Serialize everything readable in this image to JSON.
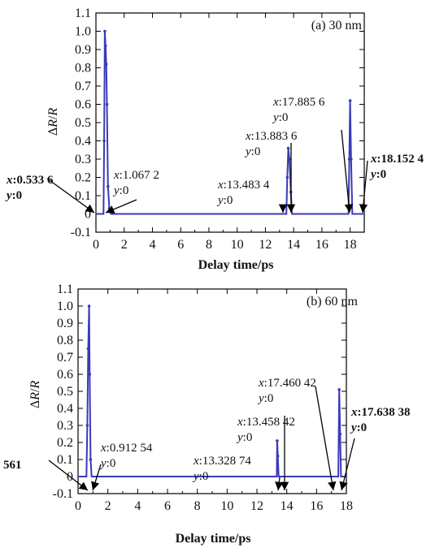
{
  "chart_data": [
    {
      "type": "line",
      "panel_label": "(a) 30 nm",
      "xlabel": "Delay time/ps",
      "ylabel_html": "ΔR/R",
      "xlim": [
        0,
        19
      ],
      "ylim": [
        -0.1,
        1.1
      ],
      "xticks": [
        0,
        2,
        4,
        6,
        8,
        10,
        12,
        14,
        16,
        18
      ],
      "yticks": [
        -0.1,
        0,
        0.1,
        0.2,
        0.3,
        0.4,
        0.5,
        0.6,
        0.7,
        0.8,
        0.9,
        1.0,
        1.1
      ],
      "ytick_labels": [
        "-0.1",
        "0",
        "0.1",
        "0.2",
        "0.3",
        "0.4",
        "0.5",
        "0.6",
        "0.7",
        "0.8",
        "0.9",
        "1.0",
        "1.1"
      ],
      "grid": false,
      "line_color": "#3a3ab8",
      "series": [
        {
          "x": [
            0,
            0.5336,
            0.58,
            0.63,
            0.68,
            0.73,
            0.78,
            0.85,
            0.95,
            1.0672,
            13.4834,
            13.55,
            13.62,
            13.7,
            13.8,
            13.8836,
            17.8856,
            17.94,
            18.0,
            18.07,
            18.152,
            19
          ],
          "y": [
            0,
            0,
            0.4,
            1.0,
            0.92,
            0.82,
            0.6,
            0.15,
            0.03,
            0,
            0,
            0.2,
            0.36,
            0.3,
            0.12,
            0,
            0,
            0.3,
            0.62,
            0.3,
            0,
            0
          ]
        }
      ],
      "annotations": [
        {
          "label_lines": [
            "x:0.533 6",
            "y:0"
          ],
          "bold": true,
          "x": 0.5336,
          "y": 0
        },
        {
          "label_lines": [
            "x:1.067 2",
            "y:0"
          ],
          "bold": false,
          "x": 1.0672,
          "y": 0
        },
        {
          "label_lines": [
            "x:13.483 4",
            "y:0"
          ],
          "bold": false,
          "x": 13.4834,
          "y": 0
        },
        {
          "label_lines": [
            "x:13.883 6",
            "y:0"
          ],
          "bold": false,
          "x": 13.8836,
          "y": 0
        },
        {
          "label_lines": [
            "x:17.885 6",
            "y:0"
          ],
          "bold": false,
          "x": 17.8856,
          "y": 0
        },
        {
          "label_lines": [
            "x:18.152 4",
            "y:0"
          ],
          "bold": true,
          "x": 18.1524,
          "y": 0
        }
      ]
    },
    {
      "type": "line",
      "panel_label": "(b) 60 nm",
      "xlabel": "Delay time/ps",
      "ylabel_html": "ΔR/R",
      "xlim": [
        0,
        18
      ],
      "ylim": [
        -0.1,
        1.1
      ],
      "xticks": [
        0,
        2,
        4,
        6,
        8,
        10,
        12,
        14,
        16,
        18
      ],
      "yticks": [
        -0.1,
        0,
        0.1,
        0.2,
        0.3,
        0.4,
        0.5,
        0.6,
        0.7,
        0.8,
        0.9,
        1.0,
        1.1
      ],
      "ytick_labels": [
        "-0.1",
        "0",
        "0.1",
        "0.2",
        "0.3",
        "0.4",
        "0.5",
        "0.6",
        "0.7",
        "0.8",
        "0.9",
        "1.0",
        "1.1"
      ],
      "grid": false,
      "line_color": "#3a3ab8",
      "series": [
        {
          "x": [
            0,
            0.56,
            0.62,
            0.68,
            0.74,
            0.78,
            0.84,
            0.9125,
            13.3287,
            13.36,
            13.4,
            13.4584,
            17.4604,
            17.52,
            17.58,
            17.6384,
            18
          ],
          "y": [
            0,
            0,
            0.3,
            0.75,
            1.0,
            0.6,
            0.1,
            0,
            0,
            0.21,
            0.12,
            0,
            0,
            0.51,
            0.25,
            0,
            0
          ]
        }
      ],
      "annotations": [
        {
          "label_lines": [
            "561"
          ],
          "bold": true,
          "x": 0.56,
          "y": 0
        },
        {
          "label_lines": [
            "x:0.912 54",
            "y:0"
          ],
          "bold": false,
          "x": 0.91254,
          "y": 0
        },
        {
          "label_lines": [
            "x:13.328 74",
            "y:0"
          ],
          "bold": false,
          "x": 13.32874,
          "y": 0
        },
        {
          "label_lines": [
            "x:13.458 42",
            "y:0"
          ],
          "bold": false,
          "x": 13.45842,
          "y": 0
        },
        {
          "label_lines": [
            "x:17.460 42",
            "y:0"
          ],
          "bold": false,
          "x": 17.46042,
          "y": 0
        },
        {
          "label_lines": [
            "x:17.638 38",
            "y:0"
          ],
          "bold": true,
          "x": 17.63838,
          "y": 0
        }
      ]
    }
  ]
}
